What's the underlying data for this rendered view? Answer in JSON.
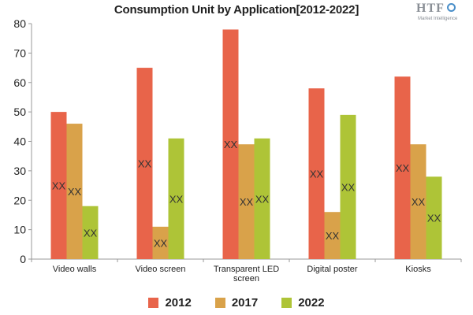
{
  "chart_data": {
    "type": "bar",
    "title": "Consumption Unit by  Application[2012-2022]",
    "categories": [
      [
        "Video walls"
      ],
      [
        "Video screen"
      ],
      [
        "Transparent LED",
        "screen"
      ],
      [
        "Digital poster"
      ],
      [
        "Kiosks"
      ]
    ],
    "series": [
      {
        "name": "2012",
        "color": "#e8644a",
        "values": [
          50,
          65,
          78,
          58,
          62
        ]
      },
      {
        "name": "2017",
        "color": "#d9a24a",
        "values": [
          46,
          11,
          39,
          16,
          39
        ]
      },
      {
        "name": "2022",
        "color": "#aec437",
        "values": [
          18,
          41,
          41,
          49,
          28
        ]
      }
    ],
    "data_label": "XX",
    "ylim": [
      0,
      80
    ],
    "yticks": [
      0,
      10,
      20,
      30,
      40,
      50,
      60,
      70,
      80
    ],
    "legend_position": "bottom",
    "grid": false
  },
  "logo": {
    "main": "HTF",
    "sub": "Market Intelligence"
  }
}
